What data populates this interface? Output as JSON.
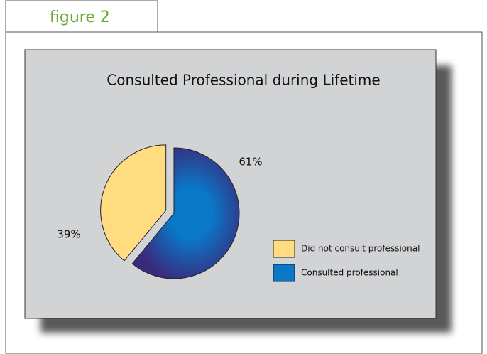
{
  "figure_label": "figure 2",
  "chart_data": {
    "type": "pie",
    "title": "Consulted Professional during Lifetime",
    "categories": [
      "Did not consult professional",
      "Consulted professional"
    ],
    "values": [
      39,
      61
    ],
    "value_labels": [
      "39%",
      "61%"
    ],
    "colors": [
      "#fedc7f",
      "#0a78c8"
    ],
    "legend": "right"
  }
}
